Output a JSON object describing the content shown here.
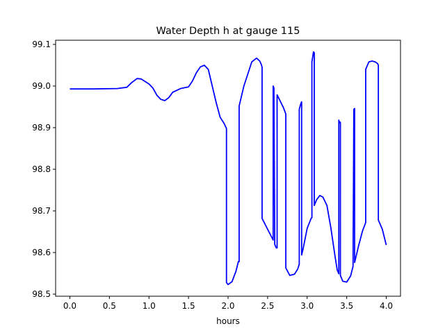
{
  "chart_data": {
    "type": "line",
    "title": "Water Depth h at gauge 115",
    "xlabel": "hours",
    "ylabel": "",
    "xlim": [
      -0.18,
      4.18
    ],
    "ylim": [
      98.495,
      99.11
    ],
    "grid": false,
    "xticks": [
      0.0,
      0.5,
      1.0,
      1.5,
      2.0,
      2.5,
      3.0,
      3.5,
      4.0
    ],
    "xtick_labels": [
      "0.0",
      "0.5",
      "1.0",
      "1.5",
      "2.0",
      "2.5",
      "3.0",
      "3.5",
      "4.0"
    ],
    "yticks": [
      98.5,
      98.6,
      98.7,
      98.8,
      98.9,
      99.0,
      99.1
    ],
    "ytick_labels": [
      "98.5",
      "98.6",
      "98.7",
      "98.8",
      "98.9",
      "99.0",
      "99.1"
    ],
    "series": [
      {
        "color": "#0000ff",
        "x": [
          0.0,
          0.3,
          0.6,
          0.72,
          0.78,
          0.85,
          0.9,
          1.0,
          1.05,
          1.1,
          1.15,
          1.2,
          1.25,
          1.3,
          1.4,
          1.5,
          1.55,
          1.6,
          1.65,
          1.7,
          1.75,
          1.8,
          1.85,
          1.9,
          1.95,
          1.98,
          1.98,
          2.0,
          2.05,
          2.1,
          2.13,
          2.14,
          2.14,
          2.2,
          2.3,
          2.36,
          2.4,
          2.42,
          2.43,
          2.43,
          2.57,
          2.57,
          2.58,
          2.59,
          2.6,
          2.61,
          2.62,
          2.62,
          2.7,
          2.73,
          2.73,
          2.78,
          2.84,
          2.88,
          2.9,
          2.9,
          2.92,
          2.93,
          2.93,
          2.95,
          3.0,
          3.05,
          3.06,
          3.06,
          3.08,
          3.09,
          3.09,
          3.12,
          3.16,
          3.2,
          3.25,
          3.3,
          3.35,
          3.38,
          3.4,
          3.4,
          3.41,
          3.42,
          3.42,
          3.45,
          3.5,
          3.55,
          3.58,
          3.59,
          3.6,
          3.6,
          3.65,
          3.7,
          3.74,
          3.74,
          3.78,
          3.82,
          3.86,
          3.89,
          3.9,
          3.9,
          3.95,
          4.0
        ],
        "y": [
          98.993,
          98.993,
          98.994,
          98.997,
          99.008,
          99.018,
          99.017,
          99.005,
          98.995,
          98.978,
          98.968,
          98.965,
          98.972,
          98.985,
          98.994,
          98.998,
          99.012,
          99.032,
          99.046,
          99.05,
          99.04,
          99.0,
          98.96,
          98.925,
          98.91,
          98.898,
          98.528,
          98.523,
          98.53,
          98.555,
          98.578,
          98.578,
          98.952,
          99.0,
          99.058,
          99.067,
          99.06,
          99.052,
          99.045,
          98.682,
          98.63,
          99.0,
          98.995,
          98.62,
          98.615,
          98.611,
          98.611,
          98.979,
          98.948,
          98.933,
          98.563,
          98.545,
          98.548,
          98.56,
          98.572,
          98.944,
          98.958,
          98.962,
          98.594,
          98.61,
          98.658,
          98.682,
          98.684,
          99.058,
          99.082,
          99.08,
          98.713,
          98.727,
          98.737,
          98.733,
          98.713,
          98.659,
          98.594,
          98.558,
          98.549,
          98.918,
          98.912,
          98.913,
          98.545,
          98.531,
          98.529,
          98.544,
          98.567,
          98.944,
          98.946,
          98.576,
          98.616,
          98.652,
          98.672,
          99.04,
          99.058,
          99.06,
          99.058,
          99.054,
          99.05,
          98.678,
          98.656,
          98.618
        ]
      }
    ]
  }
}
